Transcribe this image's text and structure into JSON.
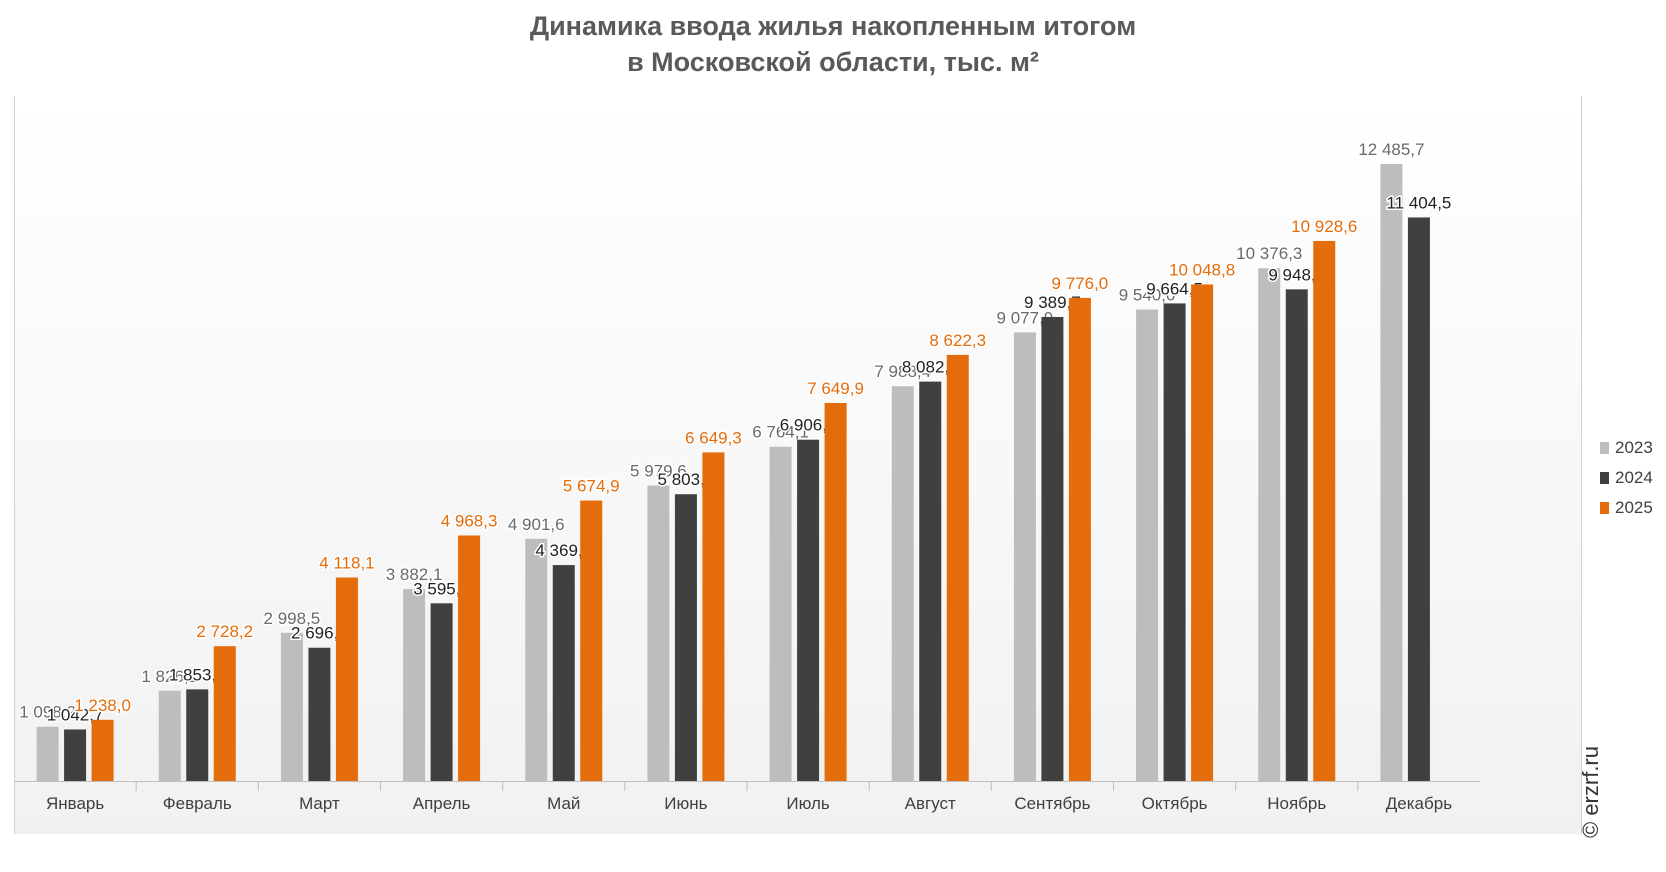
{
  "title_lines": [
    "Динамика ввода жилья накопленным итогом",
    "в Московской области, тыс. м²"
  ],
  "credit": "© erzrf.ru",
  "chart_data": {
    "type": "bar",
    "title": "Динамика ввода жилья накопленным итогом в Московской области, тыс. м²",
    "xlabel": "",
    "ylabel": "",
    "ylim": [
      0,
      13000
    ],
    "grid": false,
    "legend_position": "right",
    "categories": [
      "Январь",
      "Февраль",
      "Март",
      "Апрель",
      "Май",
      "Июнь",
      "Июль",
      "Август",
      "Сентябрь",
      "Октябрь",
      "Ноябрь",
      "Декабрь"
    ],
    "series": [
      {
        "name": "2023",
        "color": "#bdbdbd",
        "label_color": "#6a6a6a",
        "values": [
          1098.2,
          1826.2,
          2998.5,
          3882.1,
          4901.6,
          5979.6,
          6764.1,
          7988.4,
          9077.9,
          9540.0,
          10376.3,
          12485.7
        ],
        "labels": [
          "1 098,2",
          "1 826,2",
          "2 998,5",
          "3 882,1",
          "4 901,6",
          "5 979,6",
          "6 764,1",
          "7 988,4",
          "9 077,9",
          "9 540,0",
          "10 376,3",
          "12 485,7"
        ]
      },
      {
        "name": "2024",
        "color": "#404040",
        "label_color": "#222222",
        "values": [
          1042.7,
          1853.8,
          2696.5,
          3595.3,
          4369.3,
          5803.4,
          6906.5,
          8082.4,
          9389.7,
          9664.5,
          9948.9,
          11404.5
        ],
        "labels": [
          "1 042,7",
          "1 853,8",
          "2 696,5",
          "3 595,3",
          "4 369,3",
          "5 803,4",
          "6 906,5",
          "8 082,4",
          "9 389,7",
          "9 664,5",
          "9 948,9",
          "11 404,5"
        ]
      },
      {
        "name": "2025",
        "color": "#e46c0a",
        "label_color": "#e46c0a",
        "values": [
          1238.0,
          2728.2,
          4118.1,
          4968.3,
          5674.9,
          6649.3,
          7649.9,
          8622.3,
          9776.0,
          10048.8,
          10928.6,
          null
        ],
        "labels": [
          "1 238,0",
          "2 728,2",
          "4 118,1",
          "4 968,3",
          "5 674,9",
          "6 649,3",
          "7 649,9",
          "8 622,3",
          "9 776,0",
          "10 048,8",
          "10 928,6",
          null
        ]
      }
    ]
  }
}
